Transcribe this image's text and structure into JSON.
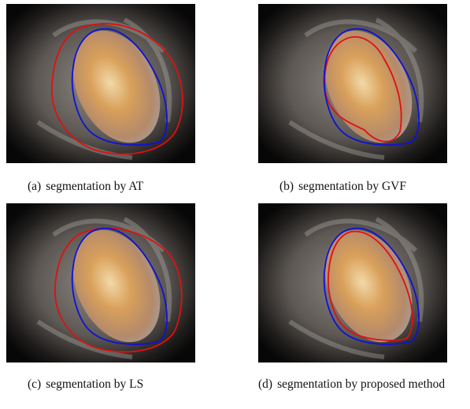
{
  "figures": [
    {
      "label": "(a)",
      "caption": "segmentation by AT"
    },
    {
      "label": "(b)",
      "caption": "segmentation by GVF"
    },
    {
      "label": "(c)",
      "caption": "segmentation by LS"
    },
    {
      "label": "(d)",
      "caption": "segmentation by proposed method"
    }
  ]
}
